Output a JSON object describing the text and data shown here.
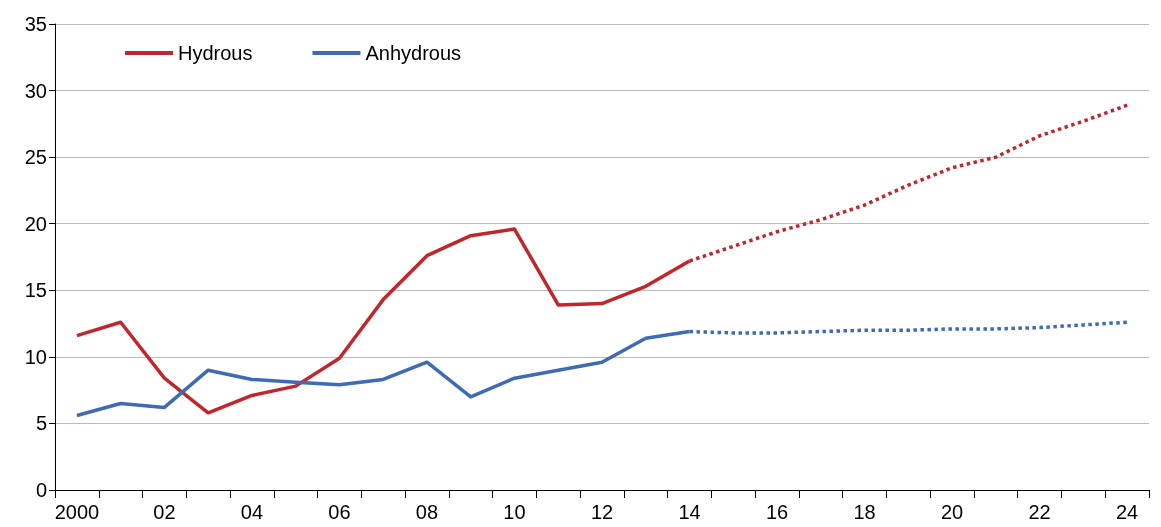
{
  "chart_data": {
    "type": "line",
    "categories": [
      "2000",
      null,
      "02",
      null,
      "04",
      null,
      "06",
      null,
      "08",
      null,
      "10",
      null,
      "12",
      null,
      "14",
      null,
      "16",
      null,
      "18",
      null,
      "20",
      null,
      "22",
      null,
      "24"
    ],
    "series": [
      {
        "name": "Hydrous",
        "color": "#c0272d",
        "line_style": "solid",
        "values": [
          11.6,
          12.6,
          8.4,
          5.8,
          7.1,
          7.8,
          9.9,
          14.3,
          17.6,
          19.1,
          19.6,
          13.9,
          14.0,
          15.3,
          17.2,
          null,
          null,
          null,
          null,
          null,
          null,
          null,
          null,
          null,
          null
        ]
      },
      {
        "name": "Anhydrous",
        "color": "#3f6ab5",
        "line_style": "solid",
        "values": [
          5.6,
          6.5,
          6.2,
          9.0,
          8.3,
          8.1,
          7.9,
          8.3,
          9.6,
          7.0,
          8.4,
          9.0,
          9.6,
          11.4,
          11.9,
          null,
          null,
          null,
          null,
          null,
          null,
          null,
          null,
          null,
          null
        ]
      },
      {
        "color": "#c0272d",
        "line_style": "dotted",
        "values": [
          null,
          null,
          null,
          null,
          null,
          null,
          null,
          null,
          null,
          null,
          null,
          null,
          null,
          null,
          17.2,
          18.3,
          19.4,
          20.3,
          21.4,
          22.9,
          24.2,
          25.0,
          26.6,
          27.7,
          28.9
        ]
      },
      {
        "color": "#3f6ab5",
        "line_style": "dotted",
        "values": [
          null,
          null,
          null,
          null,
          null,
          null,
          null,
          null,
          null,
          null,
          null,
          null,
          null,
          null,
          11.9,
          11.8,
          11.8,
          11.9,
          12.0,
          12.0,
          12.1,
          12.1,
          12.2,
          12.4,
          12.6
        ]
      }
    ],
    "ylim": [
      0,
      35
    ],
    "yticks": [
      0,
      5,
      10,
      15,
      20,
      25,
      30,
      35
    ],
    "grid": "y",
    "legend": "top left",
    "marker": "none"
  }
}
